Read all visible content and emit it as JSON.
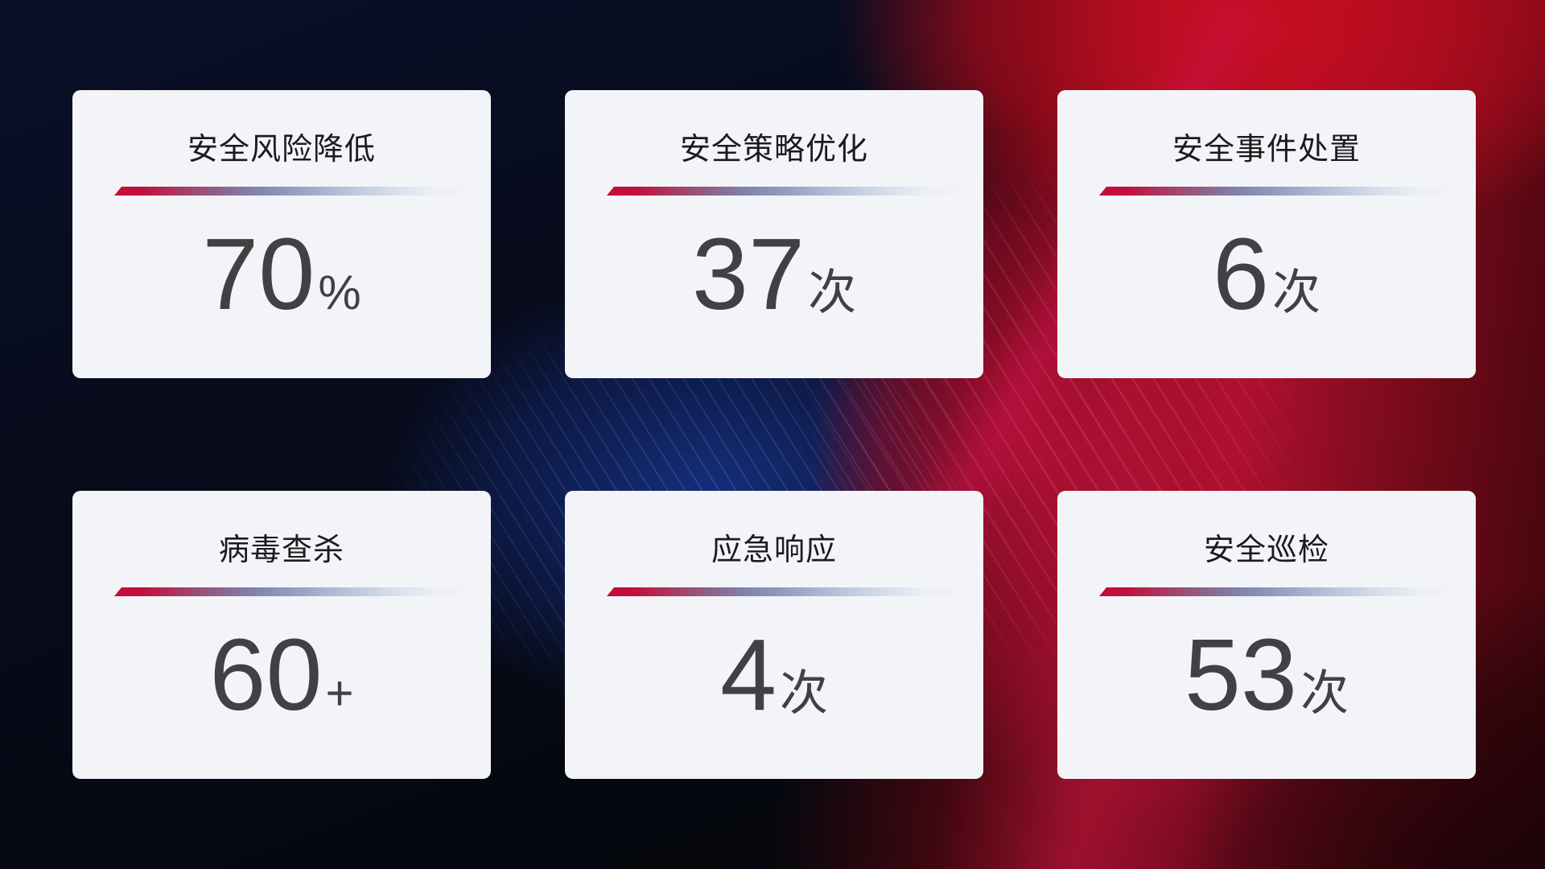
{
  "cards": [
    {
      "title": "安全风险降低",
      "value": "70",
      "suffix": "%"
    },
    {
      "title": "安全策略优化",
      "value": "37",
      "suffix": "次"
    },
    {
      "title": "安全事件处置",
      "value": "6",
      "suffix": "次"
    },
    {
      "title": "病毒查杀",
      "value": "60",
      "suffix": "+"
    },
    {
      "title": "应急响应",
      "value": "4",
      "suffix": "次"
    },
    {
      "title": "安全巡检",
      "value": "53",
      "suffix": "次"
    }
  ],
  "colors": {
    "card_background": "#f3f4f8",
    "title_text": "#1b1b1d",
    "value_text": "#414144",
    "divider_start_red": "#c40d34",
    "divider_mid_slate": "#8082ad",
    "divider_end_fade": "#eceff6",
    "background_navy": "#070a18",
    "background_blue_glow": "#163082",
    "background_red": "#b01030",
    "background_crimson_band": "#cd124b"
  }
}
